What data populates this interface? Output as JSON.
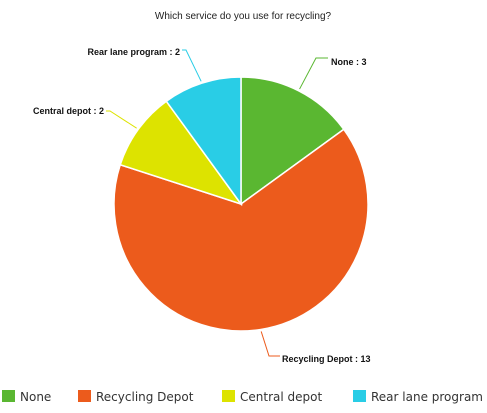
{
  "chart_data": {
    "type": "pie",
    "title": "Which service do you use for recycling?",
    "slices": [
      {
        "label": "None",
        "value": 3,
        "color": "#5ab731",
        "data_label": "None : 3"
      },
      {
        "label": "Recycling Depot",
        "value": 13,
        "color": "#ec5b1c",
        "data_label": "Recycling Depot : 13"
      },
      {
        "label": "Central depot",
        "value": 2,
        "color": "#dde300",
        "data_label": "Central depot : 2"
      },
      {
        "label": "Rear lane program",
        "value": 2,
        "color": "#29cde6",
        "data_label": "Rear lane program : 2"
      }
    ],
    "legend_position": "bottom",
    "start_angle_deg": 0,
    "direction": "clockwise"
  }
}
